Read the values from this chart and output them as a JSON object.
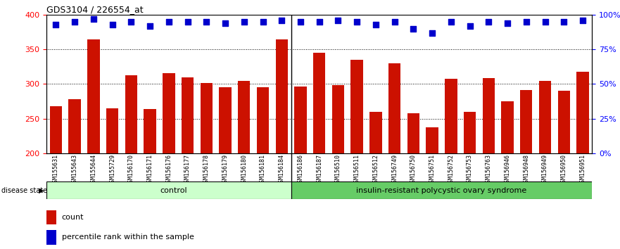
{
  "title": "GDS3104 / 226554_at",
  "samples": [
    "GSM155631",
    "GSM155643",
    "GSM155644",
    "GSM155729",
    "GSM156170",
    "GSM156171",
    "GSM156176",
    "GSM156177",
    "GSM156178",
    "GSM156179",
    "GSM156180",
    "GSM156181",
    "GSM156184",
    "GSM156186",
    "GSM156187",
    "GSM156510",
    "GSM156511",
    "GSM156512",
    "GSM156749",
    "GSM156750",
    "GSM156751",
    "GSM156752",
    "GSM156753",
    "GSM156763",
    "GSM156946",
    "GSM156948",
    "GSM156949",
    "GSM156950",
    "GSM156951"
  ],
  "counts": [
    268,
    278,
    365,
    265,
    313,
    264,
    316,
    310,
    301,
    295,
    305,
    295,
    365,
    296,
    345,
    298,
    335,
    260,
    330,
    258,
    237,
    308,
    260,
    309,
    275,
    291,
    305,
    290,
    318
  ],
  "percentile_ranks": [
    93,
    95,
    97,
    93,
    95,
    92,
    95,
    95,
    95,
    94,
    95,
    95,
    96,
    95,
    95,
    96,
    95,
    93,
    95,
    90,
    87,
    95,
    92,
    95,
    94,
    95,
    95,
    95,
    96
  ],
  "control_count": 13,
  "group1_label": "control",
  "group2_label": "insulin-resistant polycystic ovary syndrome",
  "group1_color": "#ccffcc",
  "group2_color": "#66cc66",
  "bar_color": "#cc1100",
  "dot_color": "#0000cc",
  "ylim_left": [
    200,
    400
  ],
  "ylim_right": [
    0,
    100
  ],
  "yticks_left": [
    200,
    250,
    300,
    350,
    400
  ],
  "yticks_right": [
    0,
    25,
    50,
    75,
    100
  ],
  "ytick_labels_right": [
    "0%",
    "25%",
    "50%",
    "75%",
    "100%"
  ],
  "grid_values": [
    250,
    300,
    350
  ],
  "separator_after": 12
}
